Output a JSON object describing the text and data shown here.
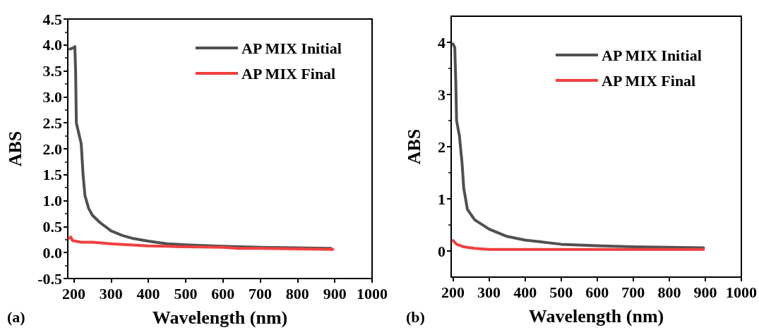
{
  "chart_data": [
    {
      "type": "line",
      "xlabel": "Wavelength (nm)",
      "ylabel": "ABS",
      "annotations": [
        "(a)"
      ],
      "xlim": [
        184,
        1000
      ],
      "xticks": [
        200,
        300,
        400,
        500,
        600,
        700,
        800,
        900,
        1000
      ],
      "ylim": [
        -0.5,
        4.5
      ],
      "yticks": [
        {
          "value": -0.5,
          "label": "-0.5"
        },
        {
          "value": 0,
          "label": "0.0"
        },
        0.5,
        {
          "value": 1,
          "label": "1.0"
        },
        1.5,
        {
          "value": 2,
          "label": "2.0"
        },
        2.5,
        {
          "value": 3,
          "label": "3.0"
        },
        3.5,
        {
          "value": 4,
          "label": "4.0"
        },
        4.5
      ],
      "grid": false,
      "legend": "top right",
      "marker": "none",
      "line_style": "solid",
      "series": [
        {
          "name": "AP MIX Initial",
          "color": "#505050",
          "x": [
            190,
            200,
            203,
            205,
            207,
            215,
            220,
            225,
            230,
            240,
            250,
            270,
            300,
            330,
            360,
            400,
            450,
            500,
            600,
            700,
            800,
            890
          ],
          "values": [
            3.92,
            3.95,
            3.97,
            3.5,
            2.5,
            2.25,
            2.1,
            1.5,
            1.1,
            0.85,
            0.72,
            0.58,
            0.42,
            0.33,
            0.27,
            0.22,
            0.17,
            0.15,
            0.12,
            0.1,
            0.09,
            0.08
          ]
        },
        {
          "name": "AP MIX Final",
          "color": "#f04040",
          "x": [
            188,
            192,
            197,
            220,
            250,
            300,
            350,
            400,
            450,
            500,
            600,
            640,
            700,
            800,
            895
          ],
          "values": [
            0.28,
            0.3,
            0.23,
            0.2,
            0.2,
            0.17,
            0.15,
            0.13,
            0.12,
            0.11,
            0.1,
            0.08,
            0.08,
            0.07,
            0.06
          ]
        }
      ]
    },
    {
      "type": "line",
      "xlabel": "Wavelength (nm)",
      "ylabel": "ABS",
      "annotations": [
        "(b)"
      ],
      "xlim": [
        195,
        1000
      ],
      "xticks": [
        200,
        300,
        400,
        500,
        600,
        700,
        800,
        900,
        1000
      ],
      "ylim": [
        -0.5,
        4.5
      ],
      "yticks": [
        0,
        1,
        2,
        3,
        4
      ],
      "grid": false,
      "legend": "top right",
      "marker": "none",
      "line_style": "solid",
      "series": [
        {
          "name": "AP MIX Initial",
          "color": "#505050",
          "x": [
            200,
            205,
            208,
            210,
            218,
            225,
            230,
            240,
            260,
            300,
            350,
            400,
            500,
            600,
            700,
            800,
            895
          ],
          "values": [
            3.97,
            3.9,
            3.2,
            2.5,
            2.2,
            1.7,
            1.2,
            0.8,
            0.6,
            0.42,
            0.28,
            0.21,
            0.13,
            0.1,
            0.08,
            0.07,
            0.06
          ]
        },
        {
          "name": "AP MIX Final",
          "color": "#f04040",
          "x": [
            200,
            210,
            230,
            260,
            300,
            400,
            600,
            895
          ],
          "values": [
            0.2,
            0.13,
            0.08,
            0.05,
            0.03,
            0.03,
            0.03,
            0.03
          ]
        }
      ]
    }
  ]
}
